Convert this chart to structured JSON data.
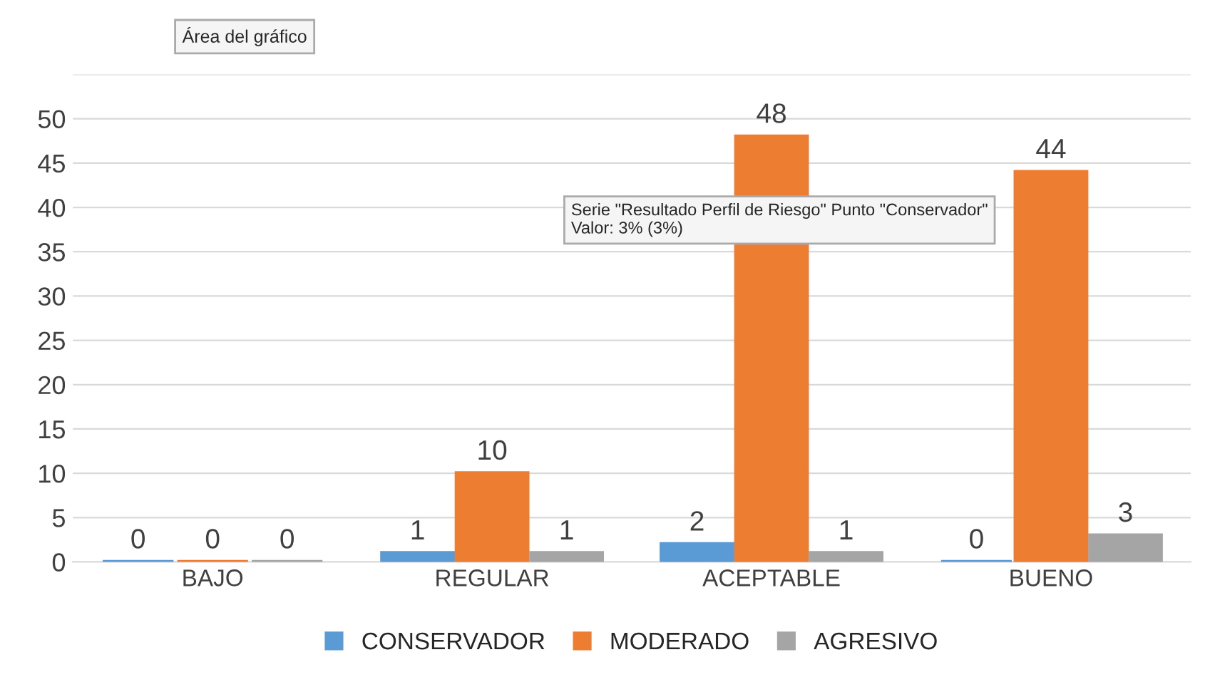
{
  "chart_data": {
    "type": "bar",
    "categories": [
      "BAJO",
      "REGULAR",
      "ACEPTABLE",
      "BUENO"
    ],
    "series": [
      {
        "name": "CONSERVADOR",
        "color": "#5b9bd5",
        "values": [
          0,
          1,
          2,
          0
        ]
      },
      {
        "name": "MODERADO",
        "color": "#ed7d31",
        "values": [
          0,
          10,
          48,
          44
        ]
      },
      {
        "name": "AGRESIVO",
        "color": "#a5a5a5",
        "values": [
          0,
          1,
          1,
          3
        ]
      }
    ],
    "ylim": [
      0,
      55
    ],
    "yticks": [
      0,
      5,
      10,
      15,
      20,
      25,
      30,
      35,
      40,
      45,
      50,
      {
        "value": 55,
        "label": null
      }
    ],
    "grid": "y",
    "legend": "bottom",
    "data_labels": true,
    "annotations": [
      "Área del gráfico",
      "Serie \"Resultado Perfil de Riesgo\" Punto \"Conservador\"\nValor: 3% (3%)"
    ]
  }
}
